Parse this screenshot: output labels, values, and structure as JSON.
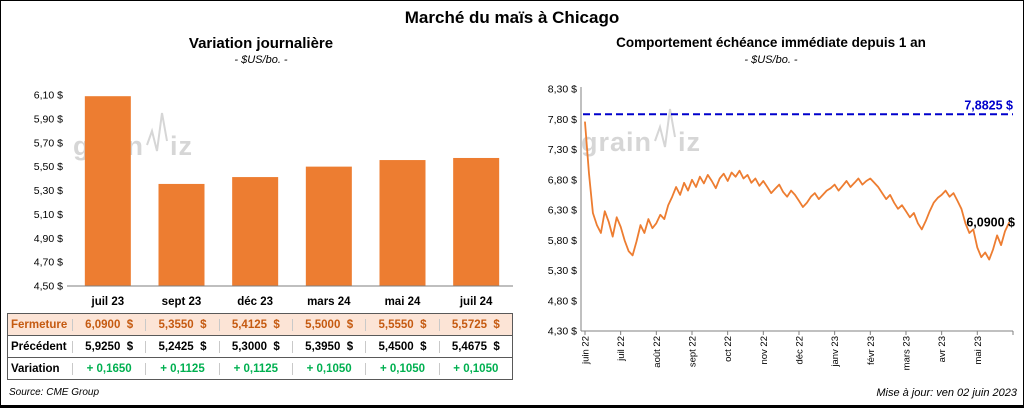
{
  "page": {
    "title": "Marché du maïs à Chicago",
    "source": "Source: CME Group",
    "updated": "Mise à jour: ven 02 juin 2023",
    "watermark_parts": [
      "grain",
      "iz"
    ]
  },
  "chart_data": [
    {
      "type": "bar",
      "title": "Variation journalière",
      "subtitle": "- $US/bo. -",
      "categories": [
        "juil 23",
        "sept 23",
        "déc 23",
        "mars 24",
        "mai 24",
        "juil 24"
      ],
      "values": [
        6.09,
        5.355,
        5.4125,
        5.5,
        5.555,
        5.5725
      ],
      "ylim": [
        4.5,
        6.1
      ],
      "ytick_step": 0.2,
      "ytick_labels": [
        "4,50 $",
        "4,70 $",
        "4,90 $",
        "5,10 $",
        "5,30 $",
        "5,50 $",
        "5,70 $",
        "5,90 $",
        "6,10 $"
      ],
      "bar_color": "#ED7D31",
      "grid": false,
      "legend": false
    },
    {
      "type": "line",
      "title": "Comportement échéance immédiate depuis 1 an",
      "subtitle": "- $US/bo. -",
      "x_tick_labels": [
        "juin 22",
        "juil 22",
        "août 22",
        "sept 22",
        "oct 22",
        "nov 22",
        "déc 22",
        "janv 23",
        "févr 23",
        "mars 23",
        "avr 23",
        "mai 23"
      ],
      "values": [
        7.75,
        6.9,
        6.25,
        6.05,
        5.92,
        6.28,
        6.1,
        5.86,
        6.18,
        6.02,
        5.8,
        5.62,
        5.55,
        5.78,
        6.05,
        5.92,
        6.15,
        6.0,
        6.08,
        6.22,
        6.15,
        6.38,
        6.52,
        6.68,
        6.55,
        6.75,
        6.62,
        6.8,
        6.68,
        6.85,
        6.74,
        6.88,
        6.78,
        6.66,
        6.82,
        6.9,
        6.78,
        6.92,
        6.85,
        6.95,
        6.82,
        6.88,
        6.75,
        6.82,
        6.7,
        6.78,
        6.68,
        6.58,
        6.65,
        6.72,
        6.6,
        6.52,
        6.62,
        6.55,
        6.45,
        6.35,
        6.42,
        6.52,
        6.58,
        6.48,
        6.55,
        6.62,
        6.66,
        6.72,
        6.62,
        6.7,
        6.78,
        6.68,
        6.75,
        6.82,
        6.72,
        6.78,
        6.82,
        6.75,
        6.68,
        6.58,
        6.48,
        6.55,
        6.42,
        6.32,
        6.38,
        6.28,
        6.18,
        6.25,
        6.08,
        5.98,
        6.12,
        6.28,
        6.42,
        6.5,
        6.55,
        6.62,
        6.52,
        6.58,
        6.45,
        6.32,
        6.08,
        5.92,
        5.98,
        5.68,
        5.52,
        5.6,
        5.48,
        5.65,
        5.88,
        5.72,
        5.95,
        6.09
      ],
      "ylim": [
        4.3,
        8.3
      ],
      "ytick_step": 0.5,
      "ytick_labels": [
        "4,30 $",
        "4,80 $",
        "5,30 $",
        "5,80 $",
        "6,30 $",
        "6,80 $",
        "7,30 $",
        "7,80 $",
        "8,30 $"
      ],
      "line_color": "#ED7D31",
      "reference_line": {
        "value": 7.8825,
        "label": "7,8825 $",
        "color": "#0000CC",
        "style": "dashed"
      },
      "last_value_label": "6,0900 $",
      "grid": false,
      "legend": false
    }
  ],
  "table": {
    "styles": {
      "fermeture_bg": "#FCE4D6",
      "fermeture_text": "#C55A11",
      "variation_text": "#00B050"
    },
    "rows": [
      {
        "id": "fermeture",
        "label": "Fermeture",
        "values": [
          "6,0900  $",
          "5,3550  $",
          "5,4125  $",
          "5,5000  $",
          "5,5550  $",
          "5,5725  $"
        ]
      },
      {
        "id": "precedent",
        "label": "Précédent",
        "values": [
          "5,9250  $",
          "5,2425  $",
          "5,3000  $",
          "5,3950  $",
          "5,4500  $",
          "5,4675  $"
        ]
      },
      {
        "id": "variation",
        "label": "Variation",
        "values": [
          "+ 0,1650",
          "+ 0,1125",
          "+ 0,1125",
          "+ 0,1050",
          "+ 0,1050",
          "+ 0,1050"
        ]
      }
    ]
  }
}
